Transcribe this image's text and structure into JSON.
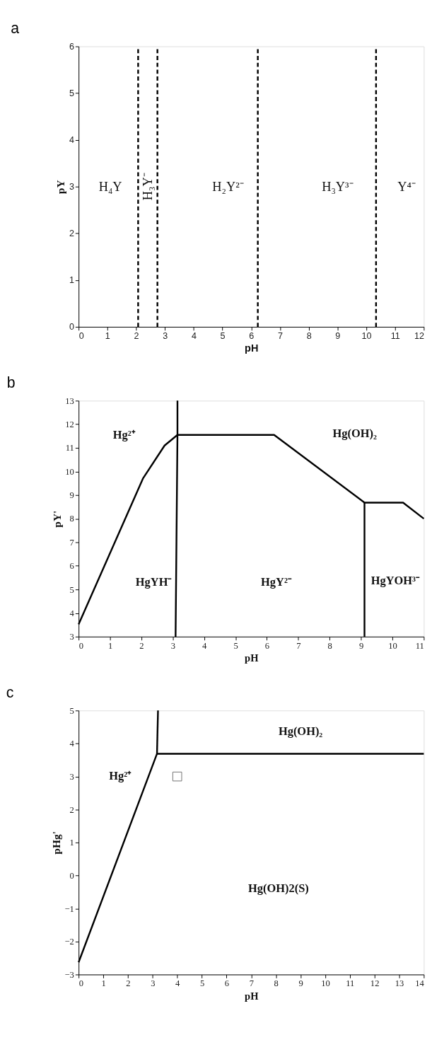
{
  "chart_data": [
    {
      "type": "line",
      "title": "a",
      "xlabel": "pH",
      "ylabel": "pY",
      "xlim": [
        0,
        12
      ],
      "ylim": [
        0,
        6
      ],
      "xticks": [
        0,
        1,
        2,
        3,
        4,
        5,
        6,
        7,
        8,
        9,
        10,
        11,
        12
      ],
      "yticks": [
        0,
        1,
        2,
        3,
        4,
        5,
        6
      ],
      "grid": false,
      "ref_lines": [
        {
          "axis": "x",
          "value": 2.07,
          "line_style": "dashed",
          "color": "#000000"
        },
        {
          "axis": "x",
          "value": 2.74,
          "line_style": "dashed",
          "color": "#000000"
        },
        {
          "axis": "x",
          "value": 6.23,
          "line_style": "dashed",
          "color": "#000000"
        },
        {
          "axis": "x",
          "value": 10.34,
          "line_style": "dashed",
          "color": "#000000"
        }
      ],
      "annotations": [
        "H₄Y",
        "H₃Y⁻",
        "H₂Y²⁻",
        "H₃Y³⁻",
        "Y⁴⁻"
      ]
    },
    {
      "type": "line",
      "title": "b",
      "xlabel": "pH",
      "ylabel": "pY'",
      "xlim": [
        0,
        11
      ],
      "ylim": [
        3,
        13
      ],
      "xticks": [
        0,
        1,
        2,
        3,
        4,
        5,
        6,
        7,
        8,
        9,
        10,
        11
      ],
      "yticks": [
        3,
        4,
        5,
        6,
        7,
        8,
        9,
        10,
        11,
        12,
        13
      ],
      "grid": false,
      "line_style": "solid",
      "series": [
        {
          "color": "#000000",
          "x": [
            0,
            2.05,
            2.74,
            3.15,
            6.23,
            9.11,
            10.34,
            11
          ],
          "values": [
            3.52,
            9.7,
            11.1,
            11.55,
            11.55,
            8.68,
            8.68,
            8.0
          ]
        },
        {
          "color": "#000000",
          "x": [
            3.09,
            3.15,
            3.15
          ],
          "values": [
            3,
            11.55,
            13
          ]
        },
        {
          "color": "#000000",
          "x": [
            9.11,
            9.11
          ],
          "values": [
            3,
            8.68
          ]
        }
      ],
      "annotations": [
        "Hg²⁺",
        "Hg(OH)₂",
        "HgYH⁻",
        "HgY²⁻",
        "HgYOH³⁻"
      ]
    },
    {
      "type": "line",
      "title": "c",
      "xlabel": "pH",
      "ylabel": "pHg'",
      "xlim": [
        0,
        14
      ],
      "ylim": [
        -3,
        5
      ],
      "xticks": [
        0,
        1,
        2,
        3,
        4,
        5,
        6,
        7,
        8,
        9,
        10,
        11,
        12,
        13,
        14
      ],
      "yticks": [
        -3,
        -2,
        -1,
        0,
        1,
        2,
        3,
        4,
        5
      ],
      "grid": false,
      "line_style": "solid",
      "series": [
        {
          "color": "#000000",
          "x": [
            0,
            3.18,
            14
          ],
          "values": [
            -2.63,
            3.69,
            3.69
          ]
        },
        {
          "color": "#000000",
          "x": [
            3.18,
            3.22
          ],
          "values": [
            3.69,
            5
          ]
        },
        {
          "type": "scatter",
          "marker": "square",
          "color": "#333333",
          "x": [
            4
          ],
          "values": [
            3
          ]
        }
      ],
      "annotations": [
        "Hg²⁺",
        "Hg(OH)₂",
        "Hg(OH)2(S)"
      ]
    }
  ]
}
